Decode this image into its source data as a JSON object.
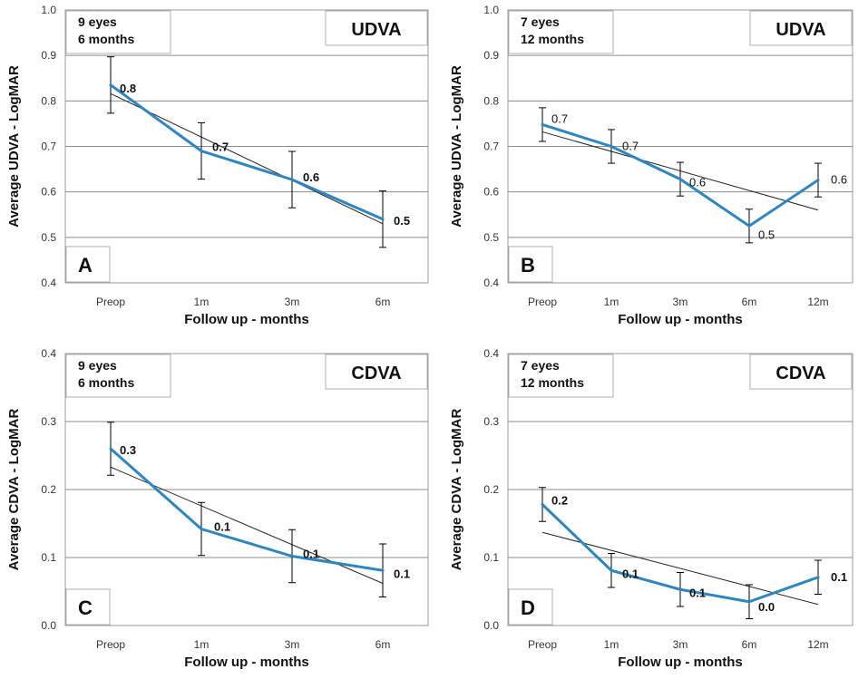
{
  "chart_data": [
    {
      "type": "line",
      "panel_label": "A",
      "measure_label": "UDVA",
      "info_lines": [
        "9 eyes",
        "6 months"
      ],
      "categories": [
        "Preop",
        "1m",
        "3m",
        "6m"
      ],
      "series": [
        {
          "values": [
            0.835,
            0.69,
            0.627,
            0.54
          ],
          "error": [
            0.062,
            0.062,
            0.062,
            0.062
          ],
          "data_labels": [
            "0.8",
            "0.7",
            "0.6",
            "0.5"
          ],
          "color": "#2e86c1"
        }
      ],
      "trendline": {
        "start": 0.816,
        "end": 0.53,
        "color": "#222222"
      },
      "label_bold": [
        true,
        true,
        true,
        true
      ],
      "ylabel": "Average UDVA - LogMAR",
      "xlabel": "Follow up - months",
      "ylim": [
        0.4,
        1.0
      ],
      "yticks": [
        "0.4",
        "0.5",
        "0.6",
        "0.7",
        "0.8",
        "0.9",
        "1.0"
      ],
      "grid": true
    },
    {
      "type": "line",
      "panel_label": "B",
      "measure_label": "UDVA",
      "info_lines": [
        "7 eyes",
        "12 months"
      ],
      "categories": [
        "Preop",
        "1m",
        "3m",
        "6m",
        "12m"
      ],
      "series": [
        {
          "values": [
            0.748,
            0.7,
            0.628,
            0.525,
            0.626
          ],
          "error": [
            0.037,
            0.037,
            0.037,
            0.037,
            0.037
          ],
          "data_labels": [
            "0.7",
            "0.7",
            "0.6",
            "0.5",
            "0.6"
          ],
          "color": "#2e86c1"
        }
      ],
      "trendline": {
        "start": 0.732,
        "end": 0.56,
        "color": "#222222"
      },
      "label_bold": [
        false,
        false,
        false,
        false,
        false
      ],
      "ylabel": "Average UDVA - LogMAR",
      "xlabel": "Follow up - months",
      "ylim": [
        0.4,
        1.0
      ],
      "yticks": [
        "0.4",
        "0.5",
        "0.6",
        "0.7",
        "0.8",
        "0.9",
        "1.0"
      ],
      "grid": true
    },
    {
      "type": "line",
      "panel_label": "C",
      "measure_label": "CDVA",
      "info_lines": [
        "9 eyes",
        "6 months"
      ],
      "categories": [
        "Preop",
        "1m",
        "3m",
        "6m"
      ],
      "series": [
        {
          "values": [
            0.26,
            0.142,
            0.102,
            0.081
          ],
          "error": [
            0.039,
            0.039,
            0.039,
            0.039
          ],
          "data_labels": [
            "0.3",
            "0.1",
            "0.1",
            "0.1"
          ],
          "color": "#2e86c1"
        }
      ],
      "trendline": {
        "start": 0.233,
        "end": 0.062,
        "color": "#222222"
      },
      "label_bold": [
        true,
        true,
        true,
        true
      ],
      "ylabel": "Average CDVA - LogMAR",
      "xlabel": "Follow up - months",
      "ylim": [
        0.0,
        0.4
      ],
      "yticks": [
        "0.0",
        "0.1",
        "0.2",
        "0.3",
        "0.4"
      ],
      "grid": true
    },
    {
      "type": "line",
      "panel_label": "D",
      "measure_label": "CDVA",
      "info_lines": [
        "7 eyes",
        "12 months"
      ],
      "categories": [
        "Preop",
        "1m",
        "3m",
        "6m",
        "12m"
      ],
      "series": [
        {
          "values": [
            0.178,
            0.081,
            0.053,
            0.035,
            0.071
          ],
          "error": [
            0.025,
            0.025,
            0.025,
            0.025,
            0.025
          ],
          "data_labels": [
            "0.2",
            "0.1",
            "0.1",
            "0.0",
            "0.1"
          ],
          "color": "#2e86c1"
        }
      ],
      "trendline": {
        "start": 0.137,
        "end": 0.031,
        "color": "#222222"
      },
      "label_bold": [
        true,
        true,
        true,
        true,
        true
      ],
      "ylabel": "Average CDVA - LogMAR",
      "xlabel": "Follow up - months",
      "ylim": [
        0.0,
        0.4
      ],
      "yticks": [
        "0.0",
        "0.1",
        "0.2",
        "0.3",
        "0.4"
      ],
      "grid": true
    }
  ]
}
